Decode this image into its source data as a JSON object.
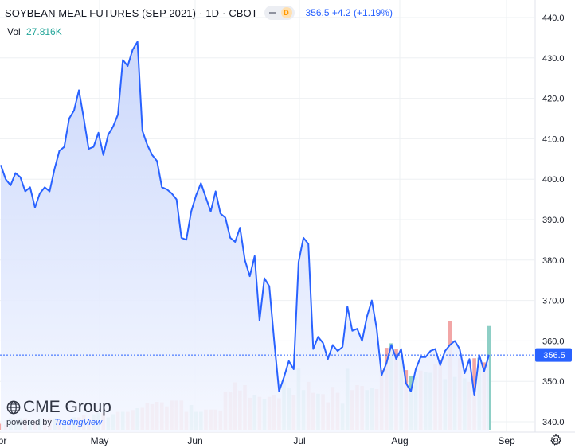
{
  "header": {
    "symbol": "SOYBEAN MEAL FUTURES (SEP 2021)",
    "interval": "1D",
    "exchange": "CBOT",
    "indicator_badge": "D",
    "price": "356.5",
    "change": "+4.2",
    "change_pct": "(+1.19%)",
    "separator": "·"
  },
  "volume": {
    "label": "Vol",
    "value": "27.816K"
  },
  "logo": {
    "brand": "CME Group",
    "powered_by": "powered by",
    "platform": "TradingView"
  },
  "icons": {
    "settings": "gear-icon",
    "indicator_toggle": "minus-icon",
    "logo": "globe-icon"
  },
  "colors": {
    "line": "#2962ff",
    "area_top": "#c9d6fb",
    "area_bottom": "#f4f7ff",
    "vol_up": "#8ecfc6",
    "vol_down": "#f2a6a6",
    "last_price": "#2962ff",
    "grid": "#eef0f3"
  },
  "chart_data": {
    "type": "area",
    "x_axis_labels": [
      "pr",
      "May",
      "Jun",
      "Jul",
      "Aug",
      "Sep"
    ],
    "y_axis_labels": [
      "340.0",
      "350.0",
      "360.0",
      "370.0",
      "380.0",
      "390.0",
      "400.0",
      "410.0",
      "420.0",
      "430.0",
      "440.0"
    ],
    "ylim": [
      338,
      442
    ],
    "last_price_label": "356.5",
    "last_price": 356.5,
    "grid": true,
    "close": [
      403.5,
      400,
      398.5,
      401.5,
      400.5,
      397,
      398,
      393,
      396.5,
      398,
      397,
      402.5,
      407,
      408,
      415,
      417,
      422,
      415,
      407.5,
      408,
      411.5,
      406,
      411,
      413,
      416,
      429.5,
      428,
      432,
      434,
      412,
      408.5,
      406,
      404.5,
      398,
      397.5,
      396.5,
      395,
      385.5,
      385,
      392,
      396,
      399,
      395.5,
      392,
      397,
      391.5,
      390.5,
      385.5,
      384.5,
      388,
      380,
      376,
      381,
      365,
      375.5,
      373.5,
      360,
      347.5,
      351,
      355,
      353,
      379.5,
      385.5,
      384,
      358,
      361,
      359.5,
      355.5,
      359,
      357.5,
      358.5,
      368.5,
      362.5,
      363,
      360,
      366,
      370,
      363,
      351.5,
      354.5,
      359,
      355.5,
      358,
      349.5,
      347.5,
      353,
      356,
      356,
      357.5,
      358,
      354,
      357.5,
      359,
      360,
      358,
      352,
      355.5,
      346.5,
      356.5,
      352.5,
      356.5
    ],
    "volume": [
      1.5,
      1.3,
      2.7,
      2.2,
      2.7,
      2.7,
      2.2,
      2.2,
      2.7,
      2.7,
      2.7,
      2.7,
      2.2,
      2.2,
      2.2,
      2.9,
      2.9,
      3.4,
      2.6,
      3.6,
      3.9,
      3.9,
      2.9,
      3.6,
      4.1,
      4.1,
      4.1,
      4.5,
      4.9,
      5.0,
      6.0,
      5.8,
      6.3,
      6.2,
      5.3,
      6.6,
      6.6,
      6.6,
      4.1,
      5.6,
      4.1,
      4.1,
      4.6,
      4.6,
      4.6,
      4.4,
      8.6,
      8.4,
      10.6,
      8.8,
      10.0,
      7.2,
      7.8,
      7.4,
      6.9,
      7.4,
      7.8,
      7.1,
      10.6,
      9.4,
      7.8,
      13.8,
      8.9,
      10.7,
      8.3,
      8.1,
      8.0,
      6.2,
      9.6,
      8.3,
      5.9,
      13.6,
      8.9,
      10.0,
      9.8,
      8.9,
      9.4,
      9.1,
      13.3,
      18.2,
      19.2,
      18.0,
      16.6,
      13.3,
      12.0,
      11.8,
      13.2,
      12.8,
      12.7,
      14.7,
      15.6,
      11.3,
      24.0,
      11.8,
      15.9,
      11.5,
      10.7,
      15.9,
      16.0,
      15.0,
      23.0
    ],
    "volume_up": [
      false,
      false,
      true,
      true,
      true,
      false,
      true,
      false,
      true,
      false,
      false,
      true,
      false,
      true,
      false,
      true,
      false,
      false,
      false,
      true,
      true,
      false,
      true,
      true,
      false,
      true,
      false,
      false,
      true,
      false,
      false,
      false,
      false,
      false,
      false,
      false,
      false,
      false,
      false,
      true,
      true,
      true,
      false,
      false,
      false,
      false,
      false,
      false,
      false,
      false,
      false,
      false,
      true,
      false,
      true,
      false,
      false,
      false,
      true,
      true,
      false,
      true,
      true,
      false,
      false,
      true,
      false,
      false,
      false,
      false,
      true,
      true,
      false,
      false,
      false,
      true,
      true,
      false,
      false,
      false,
      true,
      false,
      true,
      false,
      true,
      true,
      false,
      true,
      true,
      false,
      false,
      true,
      false,
      true,
      false,
      true,
      false,
      false,
      true,
      false,
      true
    ]
  }
}
